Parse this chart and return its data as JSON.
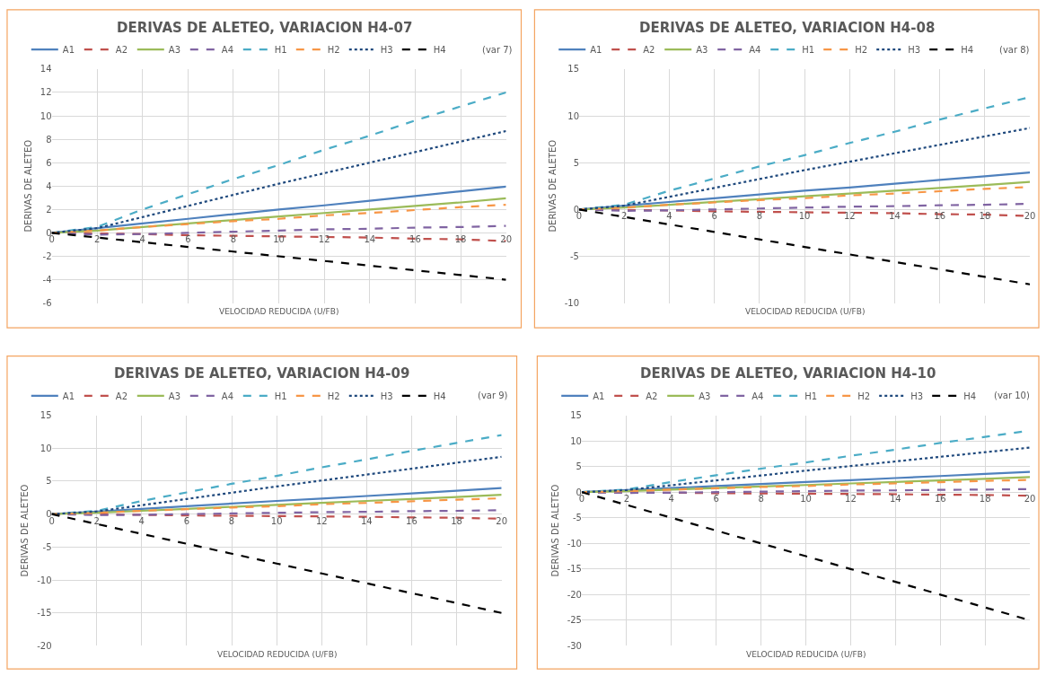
{
  "chart_data": [
    {
      "type": "line",
      "title": "DERIVAS DE ALETEO, VARIACION H4-07",
      "xlabel": "VELOCIDAD REDUCIDA (U/FB)",
      "ylabel": "DERIVAS DE ALETEO",
      "x": [
        0,
        2,
        4,
        6,
        8,
        10,
        12,
        14,
        16,
        18,
        20
      ],
      "xlim": [
        0,
        20
      ],
      "xticks": [
        0,
        2,
        4,
        6,
        8,
        10,
        12,
        14,
        16,
        18,
        20
      ],
      "ylim": [
        -6,
        14
      ],
      "yticks": [
        -6,
        -4,
        -2,
        0,
        2,
        4,
        6,
        8,
        10,
        12,
        14
      ],
      "grid": true,
      "legend": "top",
      "annotations": [
        "(var 7)"
      ],
      "series": [
        {
          "name": "A1",
          "color": "#4f81bd",
          "line_style": "solid",
          "values": [
            0,
            0.4,
            0.8,
            1.2,
            1.6,
            2.0,
            2.35,
            2.75,
            3.15,
            3.55,
            3.95
          ]
        },
        {
          "name": "A2",
          "color": "#c0504d",
          "line_style": "dashed",
          "values": [
            0,
            -0.05,
            -0.1,
            -0.2,
            -0.25,
            -0.3,
            -0.35,
            -0.4,
            -0.5,
            -0.55,
            -0.7
          ]
        },
        {
          "name": "A3",
          "color": "#9bbb59",
          "line_style": "solid",
          "values": [
            0,
            0.2,
            0.5,
            0.8,
            1.1,
            1.4,
            1.7,
            2.0,
            2.3,
            2.6,
            2.95
          ]
        },
        {
          "name": "A4",
          "color": "#8064a2",
          "line_style": "dashed",
          "values": [
            0,
            -0.15,
            -0.1,
            0,
            0.1,
            0.2,
            0.3,
            0.35,
            0.45,
            0.5,
            0.6
          ]
        },
        {
          "name": "H1",
          "color": "#4bacc6",
          "line_style": "dashed",
          "values": [
            0,
            0.5,
            2.0,
            3.3,
            4.6,
            5.8,
            7.1,
            8.3,
            9.6,
            10.8,
            12.0
          ]
        },
        {
          "name": "H2",
          "color": "#f79646",
          "line_style": "dashed",
          "values": [
            0,
            0.2,
            0.5,
            0.75,
            1.0,
            1.2,
            1.5,
            1.7,
            1.95,
            2.2,
            2.4
          ]
        },
        {
          "name": "H3",
          "color": "#1f497d",
          "line_style": "dotted",
          "values": [
            0,
            0.4,
            1.35,
            2.3,
            3.25,
            4.2,
            5.1,
            6.0,
            6.9,
            7.8,
            8.7
          ]
        },
        {
          "name": "H4",
          "color": "#000000",
          "line_style": "dashed",
          "values": [
            0,
            -0.4,
            -0.8,
            -1.2,
            -1.6,
            -2.0,
            -2.4,
            -2.8,
            -3.2,
            -3.6,
            -4.0
          ]
        }
      ]
    },
    {
      "type": "line",
      "title": "DERIVAS DE ALETEO, VARIACION H4-08",
      "xlabel": "VELOCIDAD REDUCIDA (U/FB)",
      "ylabel": "DERIVAS DE ALETEO",
      "x": [
        0,
        2,
        4,
        6,
        8,
        10,
        12,
        14,
        16,
        18,
        20
      ],
      "xlim": [
        0,
        20
      ],
      "xticks": [
        0,
        2,
        4,
        6,
        8,
        10,
        12,
        14,
        16,
        18,
        20
      ],
      "ylim": [
        -10,
        15
      ],
      "yticks": [
        -10,
        -5,
        0,
        5,
        10,
        15
      ],
      "grid": true,
      "legend": "top",
      "annotations": [
        "(var 8)"
      ],
      "series": [
        {
          "name": "A1",
          "color": "#4f81bd",
          "line_style": "solid",
          "values": [
            0,
            0.4,
            0.8,
            1.2,
            1.6,
            2.0,
            2.35,
            2.75,
            3.15,
            3.55,
            3.95
          ]
        },
        {
          "name": "A2",
          "color": "#c0504d",
          "line_style": "dashed",
          "values": [
            0,
            -0.05,
            -0.1,
            -0.2,
            -0.25,
            -0.3,
            -0.35,
            -0.4,
            -0.5,
            -0.55,
            -0.7
          ]
        },
        {
          "name": "A3",
          "color": "#9bbb59",
          "line_style": "solid",
          "values": [
            0,
            0.2,
            0.5,
            0.8,
            1.1,
            1.4,
            1.7,
            2.0,
            2.3,
            2.6,
            2.95
          ]
        },
        {
          "name": "A4",
          "color": "#8064a2",
          "line_style": "dashed",
          "values": [
            0,
            -0.15,
            -0.1,
            0,
            0.1,
            0.2,
            0.3,
            0.35,
            0.45,
            0.5,
            0.6
          ]
        },
        {
          "name": "H1",
          "color": "#4bacc6",
          "line_style": "dashed",
          "values": [
            0,
            0.5,
            2.0,
            3.3,
            4.6,
            5.8,
            7.1,
            8.3,
            9.6,
            10.8,
            12.0
          ]
        },
        {
          "name": "H2",
          "color": "#f79646",
          "line_style": "dashed",
          "values": [
            0,
            0.2,
            0.5,
            0.75,
            1.0,
            1.2,
            1.5,
            1.7,
            1.95,
            2.2,
            2.4
          ]
        },
        {
          "name": "H3",
          "color": "#1f497d",
          "line_style": "dotted",
          "values": [
            0,
            0.4,
            1.35,
            2.3,
            3.25,
            4.2,
            5.1,
            6.0,
            6.9,
            7.8,
            8.7
          ]
        },
        {
          "name": "H4",
          "color": "#000000",
          "line_style": "dashed",
          "values": [
            0,
            -0.8,
            -1.6,
            -2.4,
            -3.2,
            -4.0,
            -4.8,
            -5.6,
            -6.4,
            -7.2,
            -8.0
          ]
        }
      ]
    },
    {
      "type": "line",
      "title": "DERIVAS DE ALETEO, VARIACION H4-09",
      "xlabel": "VELOCIDAD REDUCIDA (U/FB)",
      "ylabel": "DERIVAS DE ALETEO",
      "x": [
        0,
        2,
        4,
        6,
        8,
        10,
        12,
        14,
        16,
        18,
        20
      ],
      "xlim": [
        0,
        20
      ],
      "xticks": [
        0,
        2,
        4,
        6,
        8,
        10,
        12,
        14,
        16,
        18,
        20
      ],
      "ylim": [
        -20,
        15
      ],
      "yticks": [
        -20,
        -15,
        -10,
        -5,
        0,
        5,
        10,
        15
      ],
      "grid": true,
      "legend": "top",
      "annotations": [
        "(var 9)"
      ],
      "series": [
        {
          "name": "A1",
          "color": "#4f81bd",
          "line_style": "solid",
          "values": [
            0,
            0.4,
            0.8,
            1.2,
            1.6,
            2.0,
            2.35,
            2.75,
            3.15,
            3.55,
            3.95
          ]
        },
        {
          "name": "A2",
          "color": "#c0504d",
          "line_style": "dashed",
          "values": [
            0,
            -0.05,
            -0.1,
            -0.2,
            -0.25,
            -0.3,
            -0.35,
            -0.4,
            -0.5,
            -0.55,
            -0.7
          ]
        },
        {
          "name": "A3",
          "color": "#9bbb59",
          "line_style": "solid",
          "values": [
            0,
            0.2,
            0.5,
            0.8,
            1.1,
            1.4,
            1.7,
            2.0,
            2.3,
            2.6,
            2.95
          ]
        },
        {
          "name": "A4",
          "color": "#8064a2",
          "line_style": "dashed",
          "values": [
            0,
            -0.15,
            -0.1,
            0,
            0.1,
            0.2,
            0.3,
            0.35,
            0.45,
            0.5,
            0.6
          ]
        },
        {
          "name": "H1",
          "color": "#4bacc6",
          "line_style": "dashed",
          "values": [
            0,
            0.5,
            2.0,
            3.3,
            4.6,
            5.8,
            7.1,
            8.3,
            9.6,
            10.8,
            12.0
          ]
        },
        {
          "name": "H2",
          "color": "#f79646",
          "line_style": "dashed",
          "values": [
            0,
            0.2,
            0.5,
            0.75,
            1.0,
            1.2,
            1.5,
            1.7,
            1.95,
            2.2,
            2.4
          ]
        },
        {
          "name": "H3",
          "color": "#1f497d",
          "line_style": "dotted",
          "values": [
            0,
            0.4,
            1.35,
            2.3,
            3.25,
            4.2,
            5.1,
            6.0,
            6.9,
            7.8,
            8.7
          ]
        },
        {
          "name": "H4",
          "color": "#000000",
          "line_style": "dashed",
          "values": [
            0,
            -1.5,
            -3.0,
            -4.5,
            -6.0,
            -7.5,
            -9.0,
            -10.5,
            -12.0,
            -13.5,
            -15.0
          ]
        }
      ]
    },
    {
      "type": "line",
      "title": "DERIVAS DE ALETEO, VARIACION H4-10",
      "xlabel": "VELOCIDAD REDUCIDA (U/FB)",
      "ylabel": "DERIVAS DE ALETEO",
      "x": [
        0,
        2,
        4,
        6,
        8,
        10,
        12,
        14,
        16,
        18,
        20
      ],
      "xlim": [
        0,
        20
      ],
      "xticks": [
        0,
        2,
        4,
        6,
        8,
        10,
        12,
        14,
        16,
        18,
        20
      ],
      "ylim": [
        -30,
        15
      ],
      "yticks": [
        -30,
        -25,
        -20,
        -15,
        -10,
        -5,
        0,
        5,
        10,
        15
      ],
      "grid": true,
      "legend": "top",
      "annotations": [
        "(var 10)"
      ],
      "series": [
        {
          "name": "A1",
          "color": "#4f81bd",
          "line_style": "solid",
          "values": [
            0,
            0.4,
            0.8,
            1.2,
            1.6,
            2.0,
            2.35,
            2.75,
            3.15,
            3.55,
            3.95
          ]
        },
        {
          "name": "A2",
          "color": "#c0504d",
          "line_style": "dashed",
          "values": [
            0,
            -0.05,
            -0.1,
            -0.2,
            -0.25,
            -0.3,
            -0.35,
            -0.4,
            -0.5,
            -0.55,
            -0.7
          ]
        },
        {
          "name": "A3",
          "color": "#9bbb59",
          "line_style": "solid",
          "values": [
            0,
            0.2,
            0.5,
            0.8,
            1.1,
            1.4,
            1.7,
            2.0,
            2.3,
            2.6,
            2.95
          ]
        },
        {
          "name": "A4",
          "color": "#8064a2",
          "line_style": "dashed",
          "values": [
            0,
            -0.15,
            -0.1,
            0,
            0.1,
            0.2,
            0.3,
            0.35,
            0.45,
            0.5,
            0.6
          ]
        },
        {
          "name": "H1",
          "color": "#4bacc6",
          "line_style": "dashed",
          "values": [
            0,
            0.5,
            2.0,
            3.3,
            4.6,
            5.8,
            7.1,
            8.3,
            9.6,
            10.8,
            12.0
          ]
        },
        {
          "name": "H2",
          "color": "#f79646",
          "line_style": "dashed",
          "values": [
            0,
            0.2,
            0.5,
            0.75,
            1.0,
            1.2,
            1.5,
            1.7,
            1.95,
            2.2,
            2.4
          ]
        },
        {
          "name": "H3",
          "color": "#1f497d",
          "line_style": "dotted",
          "values": [
            0,
            0.4,
            1.35,
            2.3,
            3.25,
            4.2,
            5.1,
            6.0,
            6.9,
            7.8,
            8.7
          ]
        },
        {
          "name": "H4",
          "color": "#000000",
          "line_style": "dashed",
          "values": [
            0,
            -2.5,
            -5.0,
            -7.5,
            -10.0,
            -12.5,
            -15.0,
            -17.5,
            -20.0,
            -22.5,
            -25.0
          ]
        }
      ]
    }
  ]
}
